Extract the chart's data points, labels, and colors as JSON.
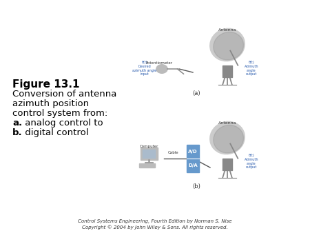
{
  "figure_label": "Figure 13.1",
  "caption_lines": [
    "Conversion of antenna",
    "azimuth position",
    "control system from:",
    "a. analog control to",
    "b. digital control"
  ],
  "copyright_line1": "Control Systems Engineering, Fourth Edition by Norman S. Nise",
  "copyright_line2": "Copyright © 2004 by John Wiley & Sons. All rights reserved.",
  "bg_color": "#ffffff",
  "text_color": "#000000",
  "diagram_color_light": "#c8c8c8",
  "diagram_color_dark": "#888888",
  "diagram_color_blue": "#6699cc",
  "label_a": "(a)",
  "label_b": "(b)"
}
